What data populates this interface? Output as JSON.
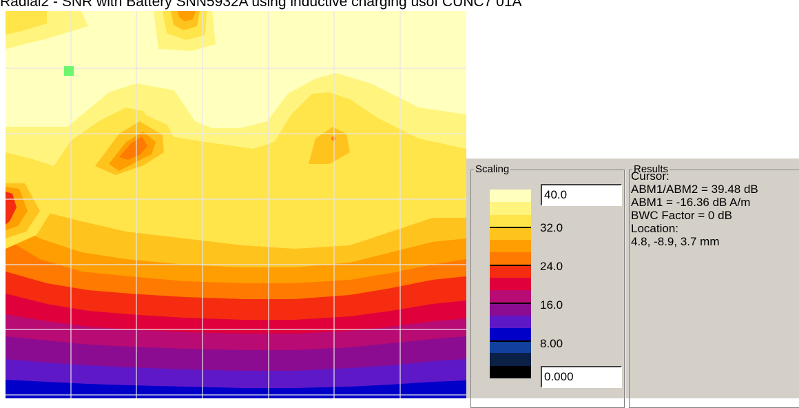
{
  "window": {
    "title": "Radial2 - SNR with Battery SNN5932A using inductive charging usof CUNC7 01A"
  },
  "plot": {
    "bands": [
      "#000000",
      "#0a2046",
      "#12409e",
      "#0000c8",
      "#5f18c8",
      "#8b0c90",
      "#b80b74",
      "#e0003c",
      "#f52c10",
      "#ff7a00",
      "#ff9e00",
      "#ffc31e",
      "#ffe44a",
      "#fff57e",
      "#ffffbe"
    ],
    "grid_color": "#e6e6e6",
    "cursor_marker_color": "#6ef56e"
  },
  "scaling": {
    "label": "Scaling",
    "max_value": "40.0",
    "min_value": "0.000",
    "ticks": [
      "32.0",
      "24.0",
      "16.0",
      "8.00"
    ]
  },
  "results": {
    "label": "Results",
    "lines": [
      "Cursor:",
      "ABM1/ABM2 = 39.48 dB",
      "ABM1 = -16.36 dB A/m",
      "BWC Factor = 0 dB",
      "Location:",
      "4.8, -8.9, 3.7 mm"
    ]
  }
}
